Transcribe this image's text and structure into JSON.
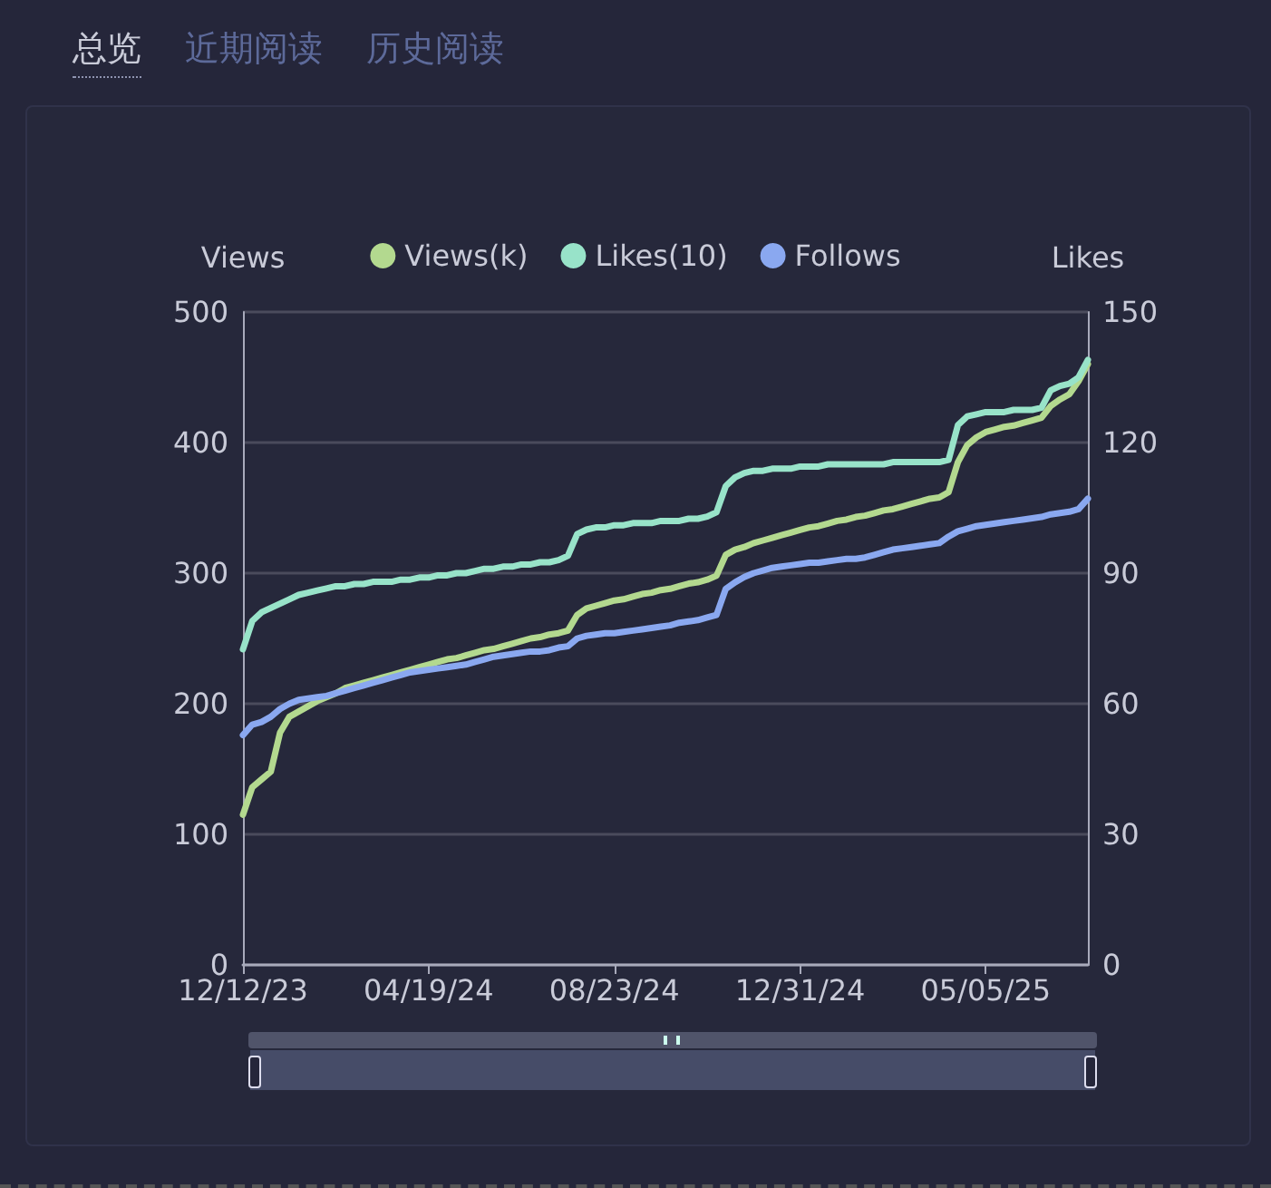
{
  "chart_data": {
    "type": "line",
    "annotations": [
      "总览",
      "近期阅读",
      "历史阅读"
    ],
    "ylabel": "Views",
    "y2label": "Likes",
    "categories": [
      "12/12/23",
      null,
      null,
      null,
      null,
      null,
      null,
      null,
      null,
      null,
      null,
      null,
      null,
      null,
      null,
      null,
      null,
      null,
      null,
      null,
      "04/19/24",
      null,
      null,
      null,
      null,
      null,
      null,
      null,
      null,
      null,
      null,
      null,
      null,
      null,
      null,
      null,
      null,
      null,
      null,
      null,
      "08/23/24",
      null,
      null,
      null,
      null,
      null,
      null,
      null,
      null,
      null,
      null,
      null,
      null,
      null,
      null,
      null,
      null,
      null,
      null,
      null,
      "12/31/24",
      null,
      null,
      null,
      null,
      null,
      null,
      null,
      null,
      null,
      null,
      null,
      null,
      null,
      null,
      null,
      null,
      null,
      null,
      null,
      "05/05/25",
      null,
      null,
      null,
      null,
      null,
      null,
      null,
      null,
      null,
      null,
      null
    ],
    "series": [
      {
        "name": "Views(k)",
        "color": "#b3d98f",
        "values": [
          115,
          136,
          142,
          148,
          178,
          190,
          194,
          198,
          202,
          205,
          208,
          212,
          214,
          216,
          218,
          220,
          222,
          224,
          226,
          228,
          230,
          232,
          234,
          235,
          237,
          239,
          241,
          242,
          244,
          246,
          248,
          250,
          251,
          253,
          254,
          256,
          268,
          273,
          275,
          277,
          279,
          280,
          282,
          284,
          285,
          287,
          288,
          290,
          292,
          293,
          295,
          298,
          314,
          318,
          320,
          323,
          325,
          327,
          329,
          331,
          333,
          335,
          336,
          338,
          340,
          341,
          343,
          344,
          346,
          348,
          349,
          351,
          353,
          355,
          357,
          358,
          362,
          385,
          398,
          404,
          408,
          410,
          412,
          413,
          415,
          417,
          419,
          428,
          433,
          437,
          447,
          460
        ]
      },
      {
        "name": "Likes(10)",
        "color": "#98e3c9",
        "axis": "y2",
        "values": [
          72.5,
          79,
          81,
          82,
          83,
          84,
          85,
          85.5,
          86,
          86.5,
          87,
          87,
          87.5,
          87.5,
          88,
          88,
          88,
          88.5,
          88.5,
          89,
          89,
          89.5,
          89.5,
          90,
          90,
          90.5,
          91,
          91,
          91.5,
          91.5,
          92,
          92,
          92.5,
          92.5,
          93,
          94,
          99,
          100,
          100.5,
          100.5,
          101,
          101,
          101.5,
          101.5,
          101.5,
          102,
          102,
          102,
          102.5,
          102.5,
          103,
          104,
          110,
          112,
          113,
          113.5,
          113.5,
          114,
          114,
          114,
          114.5,
          114.5,
          114.5,
          115,
          115,
          115,
          115,
          115,
          115,
          115,
          115.5,
          115.5,
          115.5,
          115.5,
          115.5,
          115.5,
          116,
          124,
          126,
          126.5,
          127,
          127,
          127,
          127.5,
          127.5,
          127.5,
          128,
          132,
          133,
          133.5,
          135,
          139
        ]
      },
      {
        "name": "Follows",
        "color": "#8aa8f0",
        "values": [
          176,
          184,
          186,
          190,
          196,
          200,
          203,
          204,
          205,
          206,
          208,
          210,
          212,
          214,
          216,
          218,
          220,
          222,
          224,
          225,
          226,
          227,
          228,
          229,
          230,
          232,
          234,
          236,
          237,
          238,
          239,
          240,
          240,
          241,
          243,
          244,
          250,
          252,
          253,
          254,
          254,
          255,
          256,
          257,
          258,
          259,
          260,
          262,
          263,
          264,
          266,
          268,
          288,
          293,
          297,
          300,
          302,
          304,
          305,
          306,
          307,
          308,
          308,
          309,
          310,
          311,
          311,
          312,
          314,
          316,
          318,
          319,
          320,
          321,
          322,
          323,
          328,
          332,
          334,
          336,
          337,
          338,
          339,
          340,
          341,
          342,
          343,
          345,
          346,
          347,
          349,
          357
        ]
      }
    ],
    "ylim": [
      0,
      500
    ],
    "yticks": [
      0,
      100,
      200,
      300,
      400,
      500
    ],
    "y2lim": [
      0,
      150
    ],
    "y2ticks": [
      0,
      30,
      60,
      90,
      120,
      150
    ],
    "grid": "y",
    "legend": "top",
    "marker": "none",
    "line_style": "solid"
  }
}
